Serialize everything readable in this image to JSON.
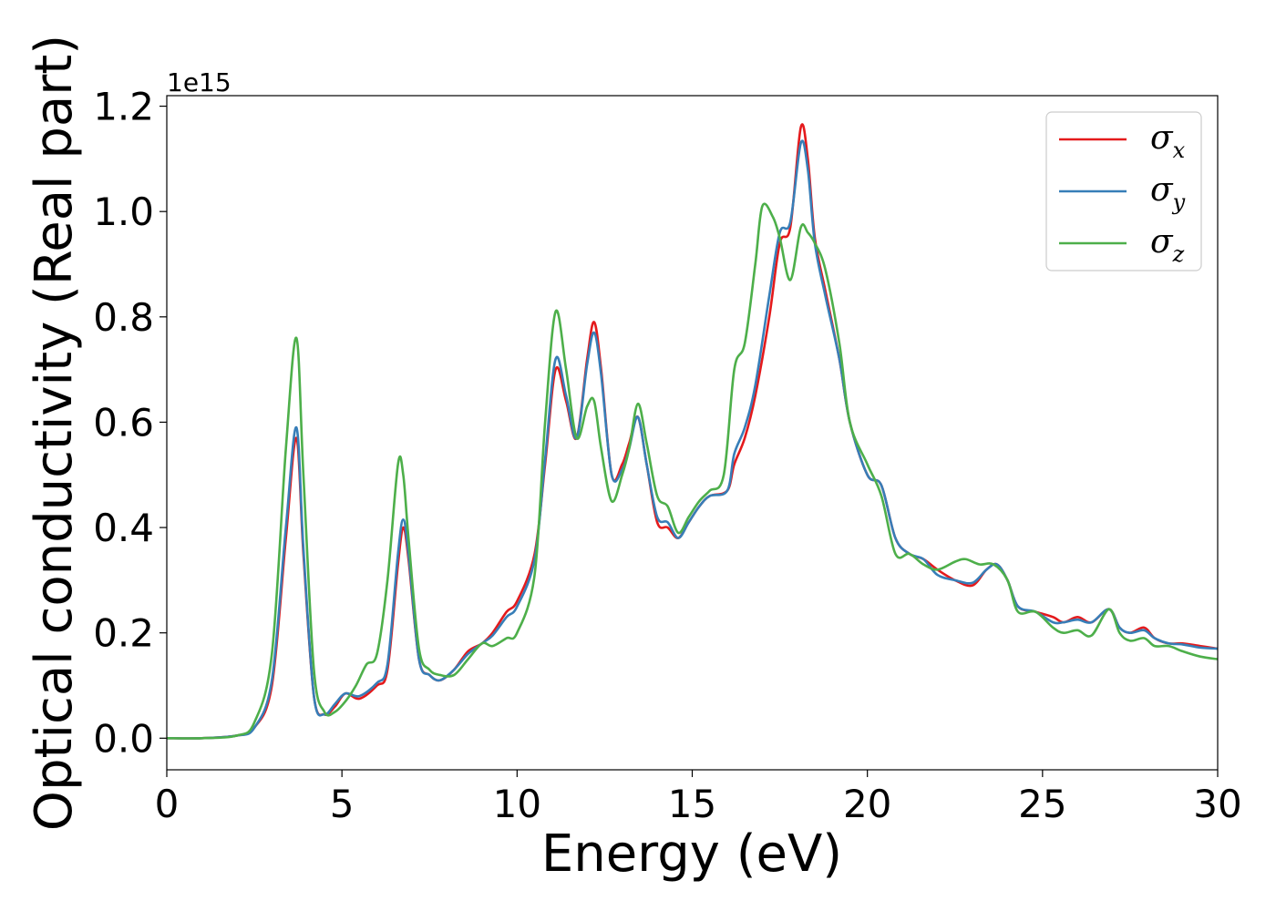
{
  "chart_data": {
    "type": "line",
    "title": "",
    "xlabel": "Energy (eV)",
    "ylabel": "Optical conductivity (Real part)",
    "y_offset_label": "1e15",
    "xlim": [
      0,
      30
    ],
    "ylim": [
      -0.06,
      1.22
    ],
    "xticks": [
      0,
      5,
      10,
      15,
      20,
      25,
      30
    ],
    "yticks": [
      0.0,
      0.2,
      0.4,
      0.6,
      0.8,
      1.0,
      1.2
    ],
    "ytick_labels": [
      "0.0",
      "0.2",
      "0.4",
      "0.6",
      "0.8",
      "1.0",
      "1.2"
    ],
    "grid": false,
    "legend_position": "top-right",
    "series": [
      {
        "name": "σ_x",
        "label_main": "σ",
        "label_sub": "x",
        "color": "#e41a1c",
        "points": [
          [
            0,
            0
          ],
          [
            1,
            0
          ],
          [
            2,
            0.005
          ],
          [
            2.5,
            0.02
          ],
          [
            3,
            0.1
          ],
          [
            3.4,
            0.38
          ],
          [
            3.7,
            0.57
          ],
          [
            3.9,
            0.35
          ],
          [
            4.2,
            0.08
          ],
          [
            4.5,
            0.045
          ],
          [
            4.8,
            0.06
          ],
          [
            5.1,
            0.085
          ],
          [
            5.5,
            0.075
          ],
          [
            6,
            0.1
          ],
          [
            6.3,
            0.13
          ],
          [
            6.6,
            0.33
          ],
          [
            6.75,
            0.4
          ],
          [
            6.9,
            0.34
          ],
          [
            7.2,
            0.15
          ],
          [
            7.5,
            0.12
          ],
          [
            7.8,
            0.11
          ],
          [
            8.2,
            0.13
          ],
          [
            8.6,
            0.165
          ],
          [
            9,
            0.18
          ],
          [
            9.3,
            0.2
          ],
          [
            9.7,
            0.24
          ],
          [
            10,
            0.26
          ],
          [
            10.5,
            0.35
          ],
          [
            10.8,
            0.52
          ],
          [
            11.1,
            0.7
          ],
          [
            11.4,
            0.64
          ],
          [
            11.7,
            0.57
          ],
          [
            12,
            0.72
          ],
          [
            12.2,
            0.79
          ],
          [
            12.4,
            0.7
          ],
          [
            12.7,
            0.5
          ],
          [
            13,
            0.52
          ],
          [
            13.2,
            0.56
          ],
          [
            13.45,
            0.61
          ],
          [
            13.7,
            0.52
          ],
          [
            14,
            0.41
          ],
          [
            14.3,
            0.4
          ],
          [
            14.6,
            0.38
          ],
          [
            14.9,
            0.41
          ],
          [
            15.2,
            0.44
          ],
          [
            15.5,
            0.46
          ],
          [
            16,
            0.47
          ],
          [
            16.2,
            0.52
          ],
          [
            16.5,
            0.57
          ],
          [
            16.8,
            0.65
          ],
          [
            17.2,
            0.8
          ],
          [
            17.5,
            0.94
          ],
          [
            17.8,
            0.97
          ],
          [
            18.1,
            1.16
          ],
          [
            18.3,
            1.1
          ],
          [
            18.5,
            0.95
          ],
          [
            18.8,
            0.85
          ],
          [
            19.2,
            0.72
          ],
          [
            19.5,
            0.6
          ],
          [
            20,
            0.5
          ],
          [
            20.4,
            0.48
          ],
          [
            20.8,
            0.38
          ],
          [
            21.2,
            0.35
          ],
          [
            21.6,
            0.34
          ],
          [
            22,
            0.32
          ],
          [
            22.5,
            0.3
          ],
          [
            23,
            0.29
          ],
          [
            23.4,
            0.32
          ],
          [
            23.7,
            0.33
          ],
          [
            24,
            0.3
          ],
          [
            24.3,
            0.25
          ],
          [
            24.8,
            0.24
          ],
          [
            25.3,
            0.23
          ],
          [
            25.6,
            0.22
          ],
          [
            26,
            0.23
          ],
          [
            26.4,
            0.22
          ],
          [
            26.9,
            0.245
          ],
          [
            27.2,
            0.21
          ],
          [
            27.5,
            0.2
          ],
          [
            27.9,
            0.21
          ],
          [
            28.2,
            0.19
          ],
          [
            28.6,
            0.18
          ],
          [
            29,
            0.18
          ],
          [
            29.5,
            0.175
          ],
          [
            30,
            0.17
          ]
        ]
      },
      {
        "name": "σ_y",
        "label_main": "σ",
        "label_sub": "y",
        "color": "#377eb8",
        "points": [
          [
            0,
            0
          ],
          [
            1,
            0
          ],
          [
            2,
            0.005
          ],
          [
            2.5,
            0.02
          ],
          [
            3,
            0.11
          ],
          [
            3.4,
            0.4
          ],
          [
            3.7,
            0.59
          ],
          [
            3.9,
            0.36
          ],
          [
            4.2,
            0.08
          ],
          [
            4.5,
            0.045
          ],
          [
            4.8,
            0.065
          ],
          [
            5.1,
            0.085
          ],
          [
            5.5,
            0.08
          ],
          [
            6,
            0.105
          ],
          [
            6.3,
            0.14
          ],
          [
            6.6,
            0.35
          ],
          [
            6.75,
            0.415
          ],
          [
            6.9,
            0.35
          ],
          [
            7.2,
            0.15
          ],
          [
            7.5,
            0.12
          ],
          [
            7.8,
            0.11
          ],
          [
            8.2,
            0.13
          ],
          [
            8.6,
            0.16
          ],
          [
            9,
            0.18
          ],
          [
            9.3,
            0.195
          ],
          [
            9.7,
            0.23
          ],
          [
            10,
            0.25
          ],
          [
            10.5,
            0.34
          ],
          [
            10.8,
            0.53
          ],
          [
            11.1,
            0.72
          ],
          [
            11.4,
            0.65
          ],
          [
            11.7,
            0.57
          ],
          [
            12,
            0.71
          ],
          [
            12.2,
            0.77
          ],
          [
            12.4,
            0.69
          ],
          [
            12.7,
            0.5
          ],
          [
            13,
            0.51
          ],
          [
            13.2,
            0.55
          ],
          [
            13.45,
            0.61
          ],
          [
            13.7,
            0.52
          ],
          [
            14,
            0.42
          ],
          [
            14.3,
            0.41
          ],
          [
            14.6,
            0.38
          ],
          [
            14.9,
            0.41
          ],
          [
            15.2,
            0.44
          ],
          [
            15.5,
            0.46
          ],
          [
            16,
            0.47
          ],
          [
            16.2,
            0.54
          ],
          [
            16.5,
            0.59
          ],
          [
            16.8,
            0.67
          ],
          [
            17.2,
            0.84
          ],
          [
            17.5,
            0.96
          ],
          [
            17.8,
            0.98
          ],
          [
            18.1,
            1.13
          ],
          [
            18.3,
            1.08
          ],
          [
            18.5,
            0.94
          ],
          [
            18.8,
            0.84
          ],
          [
            19.2,
            0.72
          ],
          [
            19.5,
            0.6
          ],
          [
            20,
            0.5
          ],
          [
            20.4,
            0.48
          ],
          [
            20.8,
            0.38
          ],
          [
            21.2,
            0.35
          ],
          [
            21.6,
            0.34
          ],
          [
            22,
            0.31
          ],
          [
            22.5,
            0.3
          ],
          [
            23,
            0.295
          ],
          [
            23.4,
            0.32
          ],
          [
            23.7,
            0.33
          ],
          [
            24,
            0.3
          ],
          [
            24.3,
            0.25
          ],
          [
            24.8,
            0.24
          ],
          [
            25.3,
            0.22
          ],
          [
            25.6,
            0.22
          ],
          [
            26,
            0.225
          ],
          [
            26.4,
            0.22
          ],
          [
            26.9,
            0.245
          ],
          [
            27.2,
            0.21
          ],
          [
            27.5,
            0.2
          ],
          [
            27.9,
            0.205
          ],
          [
            28.2,
            0.19
          ],
          [
            28.6,
            0.18
          ],
          [
            29,
            0.178
          ],
          [
            29.5,
            0.172
          ],
          [
            30,
            0.17
          ]
        ]
      },
      {
        "name": "σ_z",
        "label_main": "σ",
        "label_sub": "z",
        "color": "#4daf4a",
        "points": [
          [
            0,
            0
          ],
          [
            1,
            0
          ],
          [
            2,
            0.005
          ],
          [
            2.5,
            0.03
          ],
          [
            3,
            0.16
          ],
          [
            3.4,
            0.55
          ],
          [
            3.7,
            0.76
          ],
          [
            3.9,
            0.5
          ],
          [
            4.2,
            0.13
          ],
          [
            4.5,
            0.05
          ],
          [
            4.8,
            0.05
          ],
          [
            5.1,
            0.07
          ],
          [
            5.4,
            0.1
          ],
          [
            5.7,
            0.14
          ],
          [
            6,
            0.16
          ],
          [
            6.3,
            0.3
          ],
          [
            6.6,
            0.52
          ],
          [
            6.75,
            0.5
          ],
          [
            6.9,
            0.38
          ],
          [
            7.2,
            0.17
          ],
          [
            7.5,
            0.13
          ],
          [
            7.8,
            0.12
          ],
          [
            8.2,
            0.12
          ],
          [
            8.6,
            0.15
          ],
          [
            9,
            0.18
          ],
          [
            9.3,
            0.175
          ],
          [
            9.7,
            0.19
          ],
          [
            10,
            0.2
          ],
          [
            10.5,
            0.31
          ],
          [
            10.8,
            0.6
          ],
          [
            11.1,
            0.81
          ],
          [
            11.4,
            0.7
          ],
          [
            11.7,
            0.57
          ],
          [
            12,
            0.63
          ],
          [
            12.2,
            0.64
          ],
          [
            12.4,
            0.55
          ],
          [
            12.7,
            0.45
          ],
          [
            13,
            0.5
          ],
          [
            13.2,
            0.55
          ],
          [
            13.45,
            0.635
          ],
          [
            13.7,
            0.56
          ],
          [
            14,
            0.46
          ],
          [
            14.3,
            0.44
          ],
          [
            14.6,
            0.39
          ],
          [
            14.9,
            0.42
          ],
          [
            15.2,
            0.45
          ],
          [
            15.5,
            0.47
          ],
          [
            15.9,
            0.5
          ],
          [
            16.2,
            0.7
          ],
          [
            16.5,
            0.75
          ],
          [
            16.8,
            0.9
          ],
          [
            17,
            1.01
          ],
          [
            17.3,
            0.99
          ],
          [
            17.5,
            0.95
          ],
          [
            17.8,
            0.87
          ],
          [
            18.1,
            0.97
          ],
          [
            18.3,
            0.96
          ],
          [
            18.5,
            0.94
          ],
          [
            18.8,
            0.89
          ],
          [
            19.2,
            0.75
          ],
          [
            19.5,
            0.6
          ],
          [
            20,
            0.52
          ],
          [
            20.4,
            0.46
          ],
          [
            20.8,
            0.35
          ],
          [
            21.2,
            0.35
          ],
          [
            21.6,
            0.33
          ],
          [
            22,
            0.32
          ],
          [
            22.5,
            0.335
          ],
          [
            22.8,
            0.34
          ],
          [
            23.2,
            0.33
          ],
          [
            23.6,
            0.33
          ],
          [
            24,
            0.3
          ],
          [
            24.3,
            0.24
          ],
          [
            24.8,
            0.24
          ],
          [
            25.3,
            0.21
          ],
          [
            25.6,
            0.2
          ],
          [
            26,
            0.205
          ],
          [
            26.4,
            0.195
          ],
          [
            26.9,
            0.245
          ],
          [
            27.2,
            0.2
          ],
          [
            27.5,
            0.185
          ],
          [
            27.9,
            0.19
          ],
          [
            28.2,
            0.175
          ],
          [
            28.6,
            0.175
          ],
          [
            29,
            0.165
          ],
          [
            29.5,
            0.155
          ],
          [
            30,
            0.15
          ]
        ]
      }
    ]
  }
}
